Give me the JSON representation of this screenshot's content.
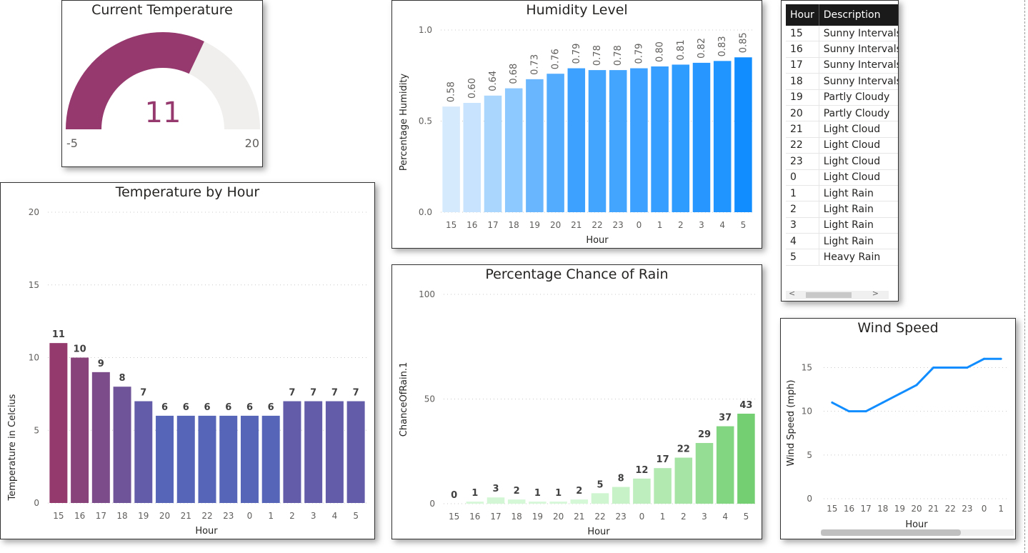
{
  "gauge": {
    "title": "Current Temperature",
    "value": 11,
    "min": -5,
    "max": 20,
    "fill_color": "#96396e",
    "track_color": "#f0efee"
  },
  "temperature_chart": {
    "title": "Temperature by Hour",
    "xlabel": "Hour",
    "ylabel": "Temperature in Celcius"
  },
  "humidity_chart": {
    "title": "Humidity Level",
    "xlabel": "Hour",
    "ylabel": "Percentage Humidity"
  },
  "rain_chart": {
    "title": "Percentage Chance of Rain",
    "xlabel": "Hour",
    "ylabel": "ChanceOfRain.1"
  },
  "wind_chart": {
    "title": "Wind Speed",
    "xlabel": "Hour",
    "ylabel": "Wind Speed (mph)"
  },
  "table": {
    "headers": [
      "Hour",
      "Description"
    ],
    "rows": [
      [
        "15",
        "Sunny Intervals"
      ],
      [
        "16",
        "Sunny Intervals"
      ],
      [
        "17",
        "Sunny Intervals"
      ],
      [
        "18",
        "Sunny Intervals"
      ],
      [
        "19",
        "Partly Cloudy"
      ],
      [
        "20",
        "Partly Cloudy"
      ],
      [
        "21",
        "Light Cloud"
      ],
      [
        "22",
        "Light Cloud"
      ],
      [
        "23",
        "Light Cloud"
      ],
      [
        "0",
        "Light Cloud"
      ],
      [
        "1",
        "Light Rain"
      ],
      [
        "2",
        "Light Rain"
      ],
      [
        "3",
        "Light Rain"
      ],
      [
        "4",
        "Light Rain"
      ],
      [
        "5",
        "Heavy Rain"
      ]
    ],
    "scroll_left": "<",
    "scroll_right": ">"
  },
  "chart_data": [
    {
      "id": "temperature",
      "type": "bar",
      "title": "Temperature by Hour",
      "xlabel": "Hour",
      "ylabel": "Temperature in Celcius",
      "categories": [
        "15",
        "16",
        "17",
        "18",
        "19",
        "20",
        "21",
        "22",
        "23",
        "0",
        "1",
        "2",
        "3",
        "4",
        "5"
      ],
      "values": [
        11,
        10,
        9,
        8,
        7,
        6,
        6,
        6,
        6,
        6,
        6,
        7,
        7,
        7,
        7
      ],
      "ylim": [
        0,
        20
      ],
      "yticks": [
        0,
        5,
        10,
        15,
        20
      ],
      "grid": true,
      "color_low": "#5665b7",
      "color_high": "#953a6c"
    },
    {
      "id": "humidity",
      "type": "bar",
      "title": "Humidity Level",
      "xlabel": "Hour",
      "ylabel": "Percentage Humidity",
      "categories": [
        "15",
        "16",
        "17",
        "18",
        "19",
        "20",
        "21",
        "22",
        "23",
        "0",
        "1",
        "2",
        "3",
        "4",
        "5"
      ],
      "values": [
        0.58,
        0.6,
        0.64,
        0.68,
        0.73,
        0.76,
        0.79,
        0.78,
        0.78,
        0.79,
        0.8,
        0.81,
        0.82,
        0.83,
        0.85
      ],
      "ylim": [
        0,
        1
      ],
      "yticks": [
        "0.0",
        "0.5",
        "1.0"
      ],
      "grid": true,
      "color_low": "#d6eafd",
      "color_high": "#118dff"
    },
    {
      "id": "rain",
      "type": "bar",
      "title": "Percentage Chance of Rain",
      "xlabel": "Hour",
      "ylabel": "ChanceOfRain.1",
      "categories": [
        "15",
        "16",
        "17",
        "18",
        "19",
        "20",
        "21",
        "22",
        "23",
        "0",
        "1",
        "2",
        "3",
        "4",
        "5"
      ],
      "values": [
        0,
        1,
        3,
        2,
        1,
        1,
        2,
        5,
        8,
        12,
        17,
        22,
        29,
        37,
        43
      ],
      "ylim": [
        0,
        100
      ],
      "yticks": [
        0,
        50,
        100
      ],
      "grid": true,
      "color_low": "#dafadb",
      "color_high": "#74cf72"
    },
    {
      "id": "wind",
      "type": "line",
      "title": "Wind Speed",
      "xlabel": "Hour",
      "ylabel": "Wind Speed (mph)",
      "categories": [
        "15",
        "16",
        "17",
        "18",
        "19",
        "20",
        "21",
        "22",
        "23",
        "0",
        "1"
      ],
      "values": [
        11,
        10,
        10,
        11,
        12,
        13,
        15,
        15,
        15,
        16,
        16
      ],
      "ylim": [
        0,
        17
      ],
      "yticks": [
        0,
        5,
        10,
        15
      ],
      "grid": true,
      "color": "#118dff"
    }
  ]
}
